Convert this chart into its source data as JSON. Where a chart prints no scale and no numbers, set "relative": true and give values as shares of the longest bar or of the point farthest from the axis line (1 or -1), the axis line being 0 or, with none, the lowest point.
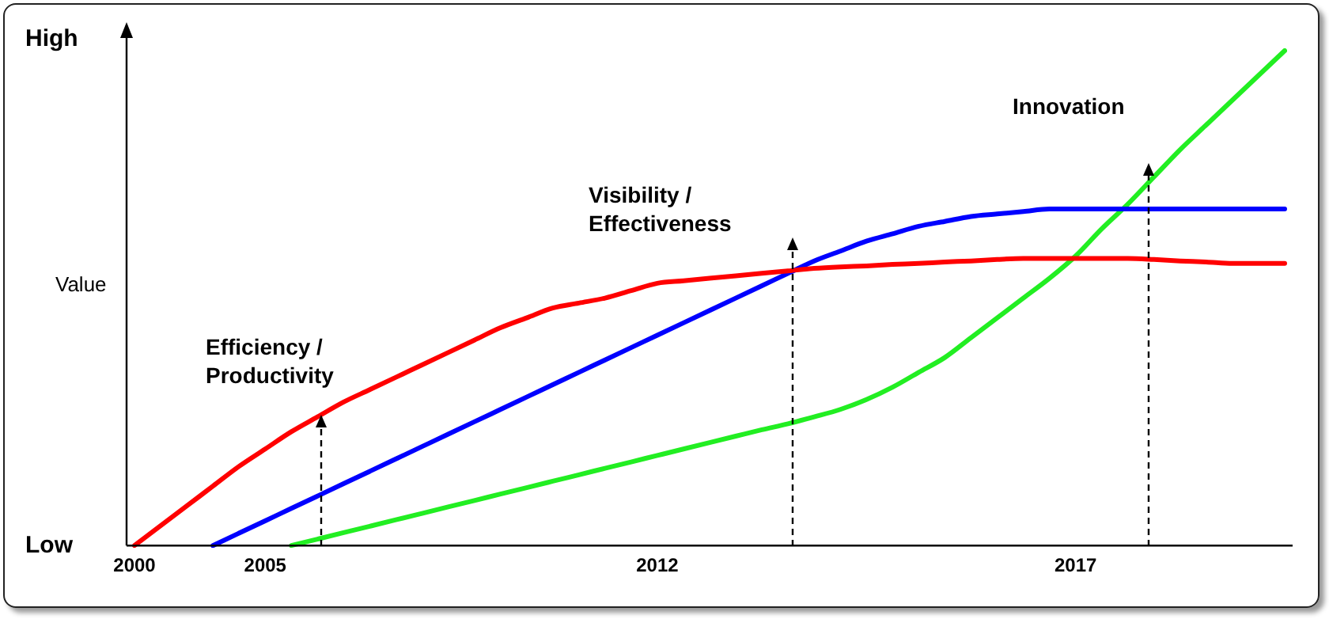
{
  "chart_data": {
    "type": "line",
    "relative": true,
    "ylabel": "Value",
    "categories": [
      "2000",
      null,
      null,
      null,
      null,
      "2005",
      null,
      null,
      null,
      null,
      null,
      null,
      null,
      null,
      null,
      null,
      null,
      null,
      null,
      null,
      "2012",
      null,
      null,
      null,
      null,
      null,
      null,
      null,
      null,
      null,
      null,
      null,
      null,
      null,
      null,
      null,
      "2017",
      null,
      null,
      null,
      null,
      null,
      null,
      null,
      null
    ],
    "series": [
      {
        "color": "#ff0000",
        "values": [
          0,
          0.04,
          0.08,
          0.12,
          0.16,
          0.195,
          0.23,
          0.26,
          0.29,
          0.315,
          0.34,
          0.365,
          0.39,
          0.415,
          0.44,
          0.46,
          0.48,
          0.49,
          0.5,
          0.515,
          0.53,
          0.535,
          0.54,
          0.545,
          0.55,
          0.555,
          0.56,
          0.563,
          0.565,
          0.568,
          0.57,
          0.573,
          0.575,
          0.578,
          0.58,
          0.58,
          0.58,
          0.58,
          0.58,
          0.578,
          0.575,
          0.573,
          0.57,
          0.57,
          0.57
        ]
      },
      {
        "color": "#0000ff",
        "values": [
          null,
          null,
          null,
          0,
          0.025,
          0.05,
          0.075,
          0.1,
          0.125,
          0.15,
          0.175,
          0.2,
          0.225,
          0.25,
          0.275,
          0.3,
          0.325,
          0.35,
          0.375,
          0.4,
          0.425,
          0.45,
          0.475,
          0.5,
          0.525,
          0.55,
          0.575,
          0.595,
          0.615,
          0.63,
          0.645,
          0.655,
          0.665,
          0.67,
          0.675,
          0.68,
          0.68,
          0.68,
          0.68,
          0.68,
          0.68,
          0.68,
          0.68,
          0.68,
          0.68
        ]
      },
      {
        "color": "#22ee22",
        "values": [
          null,
          null,
          null,
          null,
          null,
          null,
          0,
          0.013,
          0.026,
          0.039,
          0.052,
          0.065,
          0.078,
          0.091,
          0.104,
          0.117,
          0.13,
          0.143,
          0.156,
          0.169,
          0.182,
          0.195,
          0.208,
          0.221,
          0.234,
          0.246,
          0.26,
          0.275,
          0.295,
          0.32,
          0.35,
          0.38,
          0.42,
          0.46,
          0.5,
          0.54,
          0.585,
          0.64,
          0.69,
          0.745,
          0.8,
          0.85,
          0.9,
          0.95,
          1
        ]
      }
    ],
    "annotations": [
      "High",
      "Low",
      "Efficiency / Productivity",
      "Visibility / Effectiveness",
      "Innovation"
    ],
    "grid": false,
    "legend": false,
    "marker": "none",
    "line_style": "solid"
  }
}
